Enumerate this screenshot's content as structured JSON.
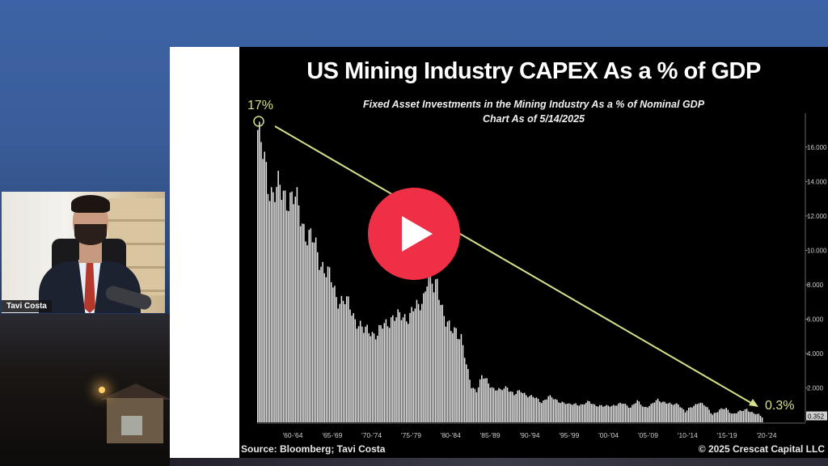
{
  "video": {
    "play_icon": "play-icon"
  },
  "webcam": {
    "presenter_name": "Tavi Costa"
  },
  "chart_data": {
    "type": "bar",
    "title": "US Mining Industry CAPEX As a % of GDP",
    "subtitle_line1": "Fixed Asset Investments in the Mining Industry As a % of Nominal GDP",
    "subtitle_line2": "Chart As of 5/14/2025",
    "source": "Source: Bloomberg; Tavi Costa",
    "copyright": "© 2025 Crescat Capital LLC",
    "x_ticks": [
      "'60-'64",
      "'65-'69",
      "'70-'74",
      "'75-'79",
      "'80-'84",
      "'85-'89",
      "'90-'94",
      "'95-'99",
      "'00-'04",
      "'05-'09",
      "'10-'14",
      "'15-'19",
      "'20-'24"
    ],
    "y_ticks": [
      "2.000",
      "4.000",
      "6.000",
      "8.000",
      "10.000",
      "12.000",
      "14.000",
      "16.000"
    ],
    "ylim": [
      0,
      17.5
    ],
    "last_value_label": "0.352",
    "annotation_start": "17%",
    "annotation_end": "0.3%",
    "bar_color": "#e6e6e6",
    "trend_color": "#d6e08a",
    "series_keypoints": [
      [
        0,
        17.0
      ],
      [
        1,
        16.2
      ],
      [
        3,
        15.3
      ],
      [
        6,
        14.2
      ],
      [
        9,
        13.5
      ],
      [
        14,
        13.2
      ],
      [
        18,
        13.4
      ],
      [
        22,
        12.7
      ],
      [
        26,
        11.8
      ],
      [
        30,
        10.8
      ],
      [
        34,
        10.0
      ],
      [
        38,
        9.3
      ],
      [
        42,
        8.3
      ],
      [
        46,
        7.4
      ],
      [
        50,
        7.1
      ],
      [
        54,
        6.6
      ],
      [
        58,
        6.0
      ],
      [
        62,
        5.2
      ],
      [
        66,
        5.4
      ],
      [
        70,
        5.1
      ],
      [
        74,
        5.6
      ],
      [
        78,
        6.2
      ],
      [
        82,
        6.0
      ],
      [
        86,
        6.2
      ],
      [
        90,
        6.4
      ],
      [
        94,
        6.6
      ],
      [
        97,
        7.5
      ],
      [
        99,
        8.5
      ],
      [
        101,
        8.3
      ],
      [
        103,
        7.5
      ],
      [
        105,
        8.2
      ],
      [
        107,
        7.3
      ],
      [
        110,
        5.8
      ],
      [
        113,
        5.2
      ],
      [
        116,
        5.5
      ],
      [
        119,
        5.0
      ],
      [
        122,
        3.2
      ],
      [
        125,
        2.1
      ],
      [
        128,
        1.9
      ],
      [
        131,
        2.6
      ],
      [
        134,
        2.4
      ],
      [
        138,
        2.0
      ],
      [
        142,
        1.8
      ],
      [
        146,
        2.1
      ],
      [
        150,
        1.6
      ],
      [
        154,
        1.8
      ],
      [
        158,
        1.6
      ],
      [
        162,
        1.4
      ],
      [
        166,
        1.2
      ],
      [
        170,
        1.5
      ],
      [
        174,
        1.3
      ],
      [
        178,
        1.2
      ],
      [
        182,
        1.0
      ],
      [
        186,
        1.1
      ],
      [
        190,
        1.0
      ],
      [
        194,
        1.2
      ],
      [
        198,
        1.0
      ],
      [
        202,
        0.9
      ],
      [
        206,
        1.0
      ],
      [
        210,
        1.0
      ],
      [
        214,
        1.1
      ],
      [
        218,
        0.9
      ],
      [
        222,
        1.2
      ],
      [
        226,
        0.9
      ],
      [
        230,
        1.0
      ],
      [
        234,
        1.3
      ],
      [
        238,
        1.2
      ],
      [
        242,
        1.0
      ],
      [
        246,
        1.1
      ],
      [
        250,
        0.6
      ],
      [
        254,
        0.9
      ],
      [
        258,
        1.2
      ],
      [
        262,
        0.9
      ],
      [
        266,
        0.5
      ],
      [
        270,
        0.7
      ],
      [
        274,
        0.8
      ],
      [
        278,
        0.5
      ],
      [
        282,
        0.6
      ],
      [
        286,
        0.8
      ],
      [
        290,
        0.5
      ],
      [
        295,
        0.35
      ]
    ],
    "n_bars": 296
  }
}
